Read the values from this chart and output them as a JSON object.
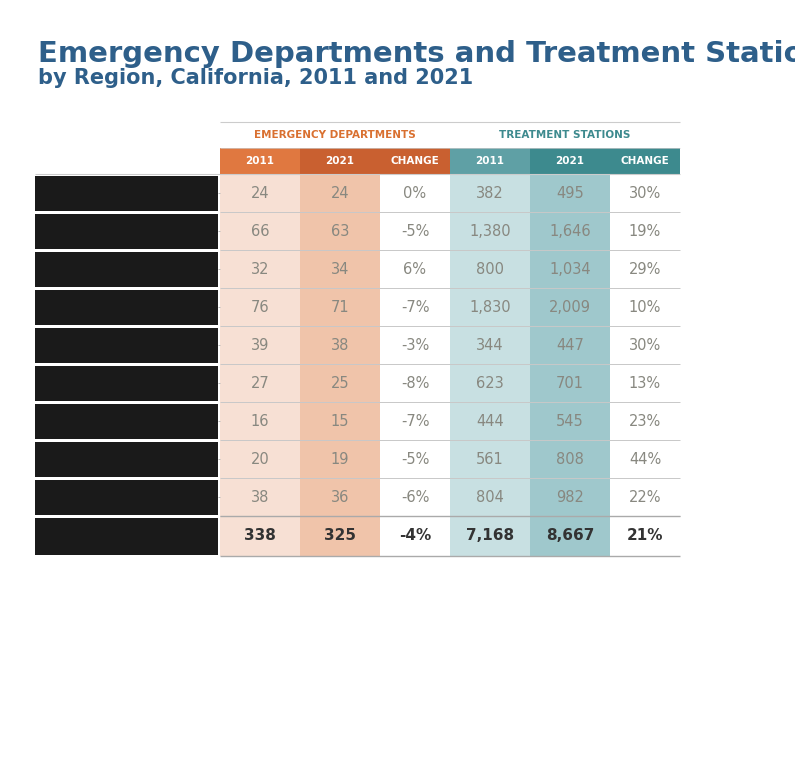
{
  "title_line1": "Emergency Departments and Treatment Stations",
  "title_line2": "by Region, California, 2011 and 2021",
  "col_group1_label": "EMERGENCY DEPARTMENTS",
  "col_group2_label": "TREATMENT STATIONS",
  "rows": [
    {
      "ed_2011": "24",
      "ed_2021": "24",
      "ed_change": "0%",
      "ts_2011": "382",
      "ts_2021": "495",
      "ts_change": "30%"
    },
    {
      "ed_2011": "66",
      "ed_2021": "63",
      "ed_change": "-5%",
      "ts_2011": "1,380",
      "ts_2021": "1,646",
      "ts_change": "19%"
    },
    {
      "ed_2011": "32",
      "ed_2021": "34",
      "ed_change": "6%",
      "ts_2011": "800",
      "ts_2021": "1,034",
      "ts_change": "29%"
    },
    {
      "ed_2011": "76",
      "ed_2021": "71",
      "ed_change": "-7%",
      "ts_2011": "1,830",
      "ts_2021": "2,009",
      "ts_change": "10%"
    },
    {
      "ed_2011": "39",
      "ed_2021": "38",
      "ed_change": "-3%",
      "ts_2011": "344",
      "ts_2021": "447",
      "ts_change": "30%"
    },
    {
      "ed_2011": "27",
      "ed_2021": "25",
      "ed_change": "-8%",
      "ts_2011": "623",
      "ts_2021": "701",
      "ts_change": "13%"
    },
    {
      "ed_2011": "16",
      "ed_2021": "15",
      "ed_change": "-7%",
      "ts_2011": "444",
      "ts_2021": "545",
      "ts_change": "23%"
    },
    {
      "ed_2011": "20",
      "ed_2021": "19",
      "ed_change": "-5%",
      "ts_2011": "561",
      "ts_2021": "808",
      "ts_change": "44%"
    },
    {
      "ed_2011": "38",
      "ed_2021": "36",
      "ed_change": "-6%",
      "ts_2011": "804",
      "ts_2021": "982",
      "ts_change": "22%"
    }
  ],
  "totals": {
    "ed_2011": "338",
    "ed_2021": "325",
    "ed_change": "-4%",
    "ts_2011": "7,168",
    "ts_2021": "8,667",
    "ts_change": "21%"
  },
  "color_ed_2011_header": "#e07840",
  "color_ed_2021_header": "#c96030",
  "color_ed_change_header": "#c96030",
  "color_ts_2011_header": "#5fa0a5",
  "color_ts_2021_header": "#3d8a8e",
  "color_ts_change_header": "#3d8a8e",
  "color_ed_2011_cell": "#f7e0d4",
  "color_ed_2021_cell": "#f0c4aa",
  "color_ts_2011_cell": "#c8e0e2",
  "color_ts_2021_cell": "#9fc8cc",
  "color_white": "#ffffff",
  "color_title_blue": "#2e5f8a",
  "color_ed_group_text": "#d97030",
  "color_ts_group_text": "#3d8a8e",
  "color_cell_text": "#888880",
  "color_total_text": "#333333",
  "color_row_line": "#c8c8c8",
  "color_black_bar": "#1a1a1a",
  "background_color": "#ffffff"
}
